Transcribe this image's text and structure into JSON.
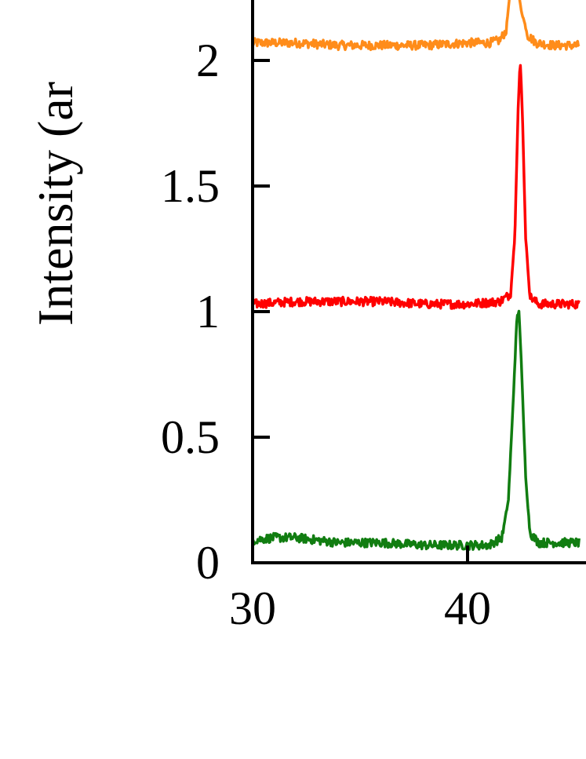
{
  "chart_data": {
    "type": "line",
    "title": "",
    "xlabel": "",
    "ylabel": "Intensity (ar",
    "xlim": [
      30,
      45.2
    ],
    "ylim": [
      0,
      2.3
    ],
    "x_ticks": [
      "30",
      "40"
    ],
    "y_ticks": [
      "0",
      "0.5",
      "1",
      "1.5",
      "2"
    ],
    "grid": false,
    "legend": "none",
    "series": [
      {
        "color": "#ff8c1a",
        "baseline": 2.07,
        "points": [
          [
            30,
            2.07
          ],
          [
            32,
            2.07
          ],
          [
            34,
            2.06
          ],
          [
            36,
            2.06
          ],
          [
            38,
            2.06
          ],
          [
            40,
            2.07
          ],
          [
            41,
            2.07
          ],
          [
            41.5,
            2.08
          ],
          [
            41.8,
            2.12
          ],
          [
            42.0,
            2.3
          ],
          [
            42.3,
            2.3
          ],
          [
            42.5,
            2.2
          ],
          [
            42.8,
            2.1
          ],
          [
            43.2,
            2.07
          ],
          [
            44,
            2.06
          ],
          [
            45.2,
            2.06
          ]
        ]
      },
      {
        "color": "#ff0000",
        "baseline": 1.03,
        "points": [
          [
            30,
            1.03
          ],
          [
            32,
            1.04
          ],
          [
            34,
            1.04
          ],
          [
            36,
            1.04
          ],
          [
            38,
            1.03
          ],
          [
            40,
            1.03
          ],
          [
            41.5,
            1.04
          ],
          [
            42.0,
            1.07
          ],
          [
            42.2,
            1.3
          ],
          [
            42.35,
            1.8
          ],
          [
            42.45,
            2.0
          ],
          [
            42.55,
            1.8
          ],
          [
            42.7,
            1.3
          ],
          [
            42.9,
            1.06
          ],
          [
            43.3,
            1.03
          ],
          [
            45.2,
            1.03
          ]
        ]
      },
      {
        "color": "#117d11",
        "baseline": 0.09,
        "points": [
          [
            30,
            0.09
          ],
          [
            31,
            0.1
          ],
          [
            32,
            0.1
          ],
          [
            33,
            0.09
          ],
          [
            34,
            0.08
          ],
          [
            36,
            0.08
          ],
          [
            38,
            0.07
          ],
          [
            40,
            0.07
          ],
          [
            41,
            0.07
          ],
          [
            41.6,
            0.1
          ],
          [
            41.9,
            0.25
          ],
          [
            42.1,
            0.6
          ],
          [
            42.3,
            0.98
          ],
          [
            42.4,
            1.0
          ],
          [
            42.5,
            0.8
          ],
          [
            42.7,
            0.35
          ],
          [
            42.9,
            0.12
          ],
          [
            43.3,
            0.08
          ],
          [
            45.2,
            0.08
          ]
        ]
      }
    ]
  }
}
